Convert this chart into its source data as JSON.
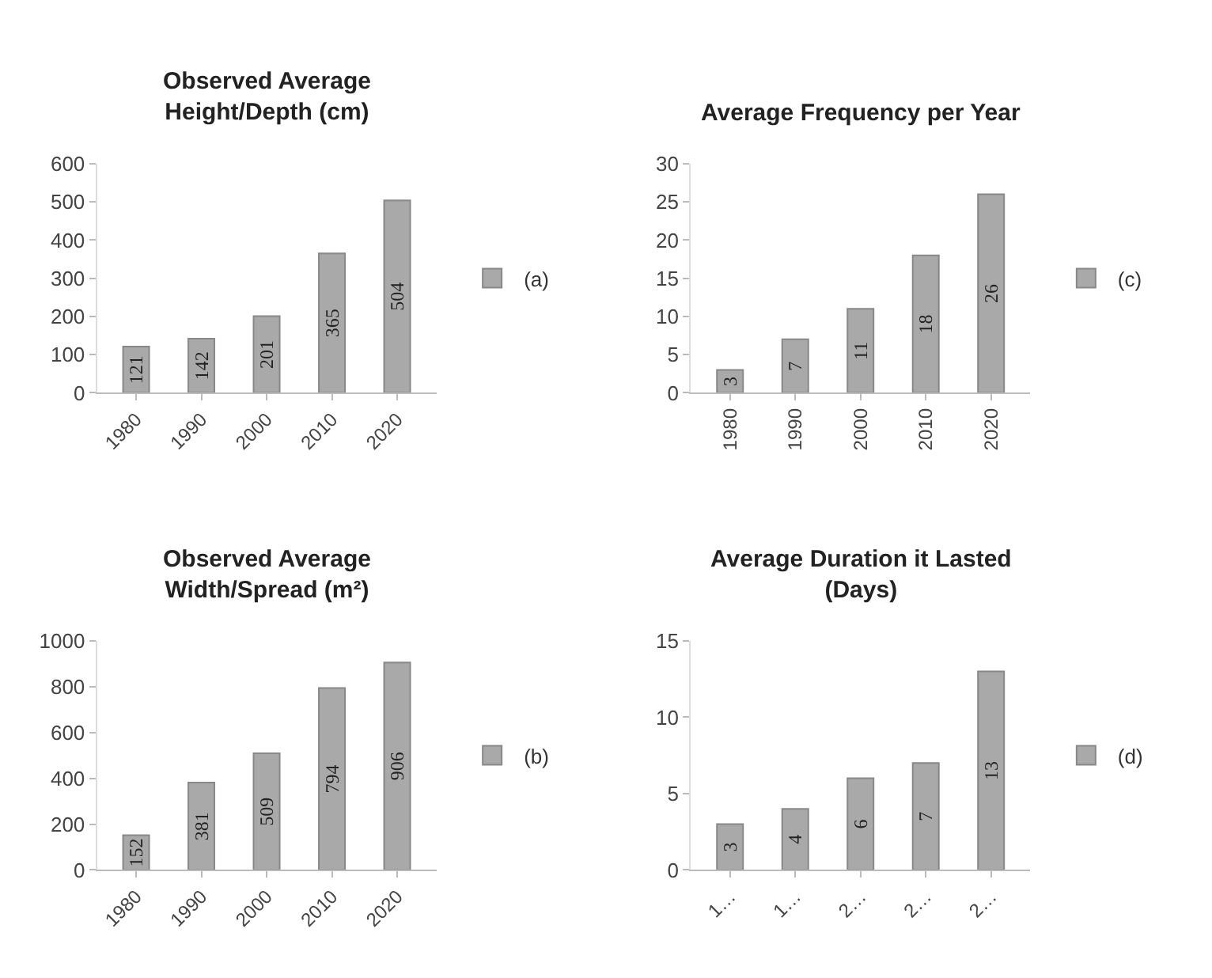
{
  "chart_data": [
    {
      "type": "bar",
      "title": "Observed Average Height/Depth (cm)",
      "categories": [
        "1980",
        "1990",
        "2000",
        "2010",
        "2020"
      ],
      "series": [
        {
          "name": "(a)",
          "color": "#a9a9a9",
          "values": [
            121,
            142,
            201,
            365,
            504
          ]
        }
      ],
      "ylim": [
        0,
        600
      ],
      "yticks": [
        0,
        100,
        200,
        300,
        400,
        500,
        600
      ],
      "data_labels": true,
      "legend": "right"
    },
    {
      "type": "bar",
      "title": "Average Frequency per Year",
      "categories": [
        "1980",
        "1990",
        "2000",
        "2010",
        "2020"
      ],
      "series": [
        {
          "name": "(c)",
          "color": "#a9a9a9",
          "values": [
            3,
            7,
            11,
            18,
            26
          ]
        }
      ],
      "ylim": [
        0,
        30
      ],
      "yticks": [
        0,
        5,
        10,
        15,
        20,
        25,
        30
      ],
      "data_labels": true,
      "legend": "right"
    },
    {
      "type": "bar",
      "title": "Observed Average Width/Spread (m²)",
      "categories": [
        "1980",
        "1990",
        "2000",
        "2010",
        "2020"
      ],
      "series": [
        {
          "name": "(b)",
          "color": "#a9a9a9",
          "values": [
            152,
            381,
            509,
            794,
            906
          ]
        }
      ],
      "ylim": [
        0,
        1000
      ],
      "yticks": [
        0,
        200,
        400,
        600,
        800,
        1000
      ],
      "data_labels": true,
      "legend": "right"
    },
    {
      "type": "bar",
      "title": "Average Duration it Lasted (Days)",
      "categories": [
        "1…",
        "1…",
        "2…",
        "2…",
        "2…"
      ],
      "series": [
        {
          "name": "(d)",
          "color": "#a9a9a9",
          "values": [
            3,
            4,
            6,
            7,
            13
          ]
        }
      ],
      "ylim": [
        0,
        15
      ],
      "yticks": [
        0,
        5,
        10,
        15
      ],
      "data_labels": true,
      "legend": "right"
    }
  ]
}
